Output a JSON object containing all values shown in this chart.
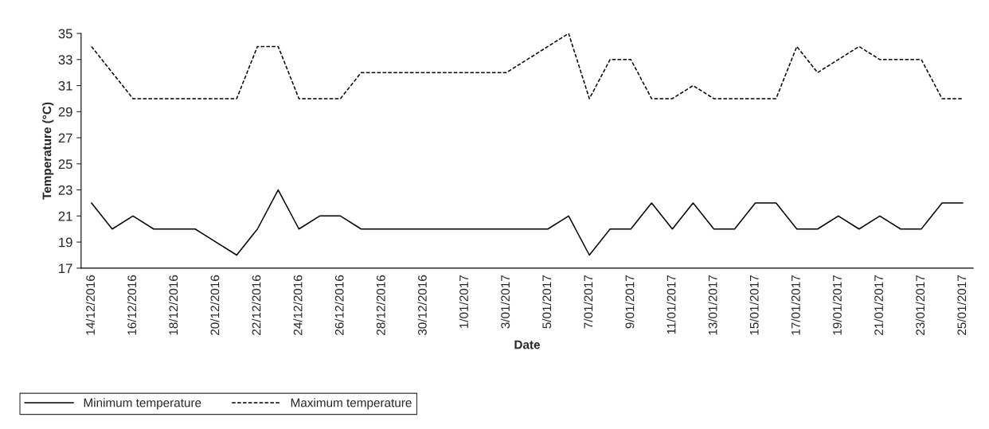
{
  "chart_data": {
    "type": "line",
    "xlabel": "Date",
    "ylabel": "Temperature (°C)",
    "categories": [
      "14/12/2016",
      null,
      "16/12/2016",
      null,
      "18/12/2016",
      null,
      "20/12/2016",
      null,
      "22/12/2016",
      null,
      "24/12/2016",
      null,
      "26/12/2016",
      null,
      "28/12/2016",
      null,
      "30/12/2016",
      null,
      "1/01/2017",
      null,
      "3/01/2017",
      null,
      "5/01/2017",
      null,
      "7/01/2017",
      null,
      "9/01/2017",
      null,
      "11/01/2017",
      null,
      "13/01/2017",
      null,
      "15/01/2017",
      null,
      "17/01/2017",
      null,
      "19/01/2017",
      null,
      "21/01/2017",
      null,
      "23/01/2017",
      null,
      "25/01/2017"
    ],
    "series": [
      {
        "name": "Minimum temperature",
        "color": "#000000",
        "line_style": "solid",
        "values": [
          22,
          20,
          21,
          20,
          20,
          20,
          19,
          18,
          20,
          23,
          20,
          21,
          21,
          20,
          20,
          20,
          20,
          20,
          20,
          20,
          20,
          20,
          20,
          21,
          18,
          20,
          20,
          22,
          20,
          22,
          20,
          20,
          22,
          22,
          20,
          20,
          21,
          20,
          21,
          20,
          20,
          22,
          22
        ]
      },
      {
        "name": "Maximum temperature",
        "color": "#000000",
        "line_style": "dashed",
        "values": [
          34,
          32,
          30,
          30,
          30,
          30,
          30,
          30,
          34,
          34,
          30,
          30,
          30,
          32,
          32,
          32,
          32,
          32,
          32,
          32,
          32,
          33,
          34,
          35,
          30,
          33,
          33,
          30,
          30,
          31,
          30,
          30,
          30,
          30,
          34,
          32,
          33,
          34,
          33,
          33,
          33,
          30,
          30
        ]
      }
    ],
    "ylim": [
      17,
      35
    ],
    "yticks": [
      17,
      19,
      21,
      23,
      25,
      27,
      29,
      31,
      33,
      35
    ],
    "grid": false,
    "legend": "bottom left",
    "marker": "none"
  }
}
